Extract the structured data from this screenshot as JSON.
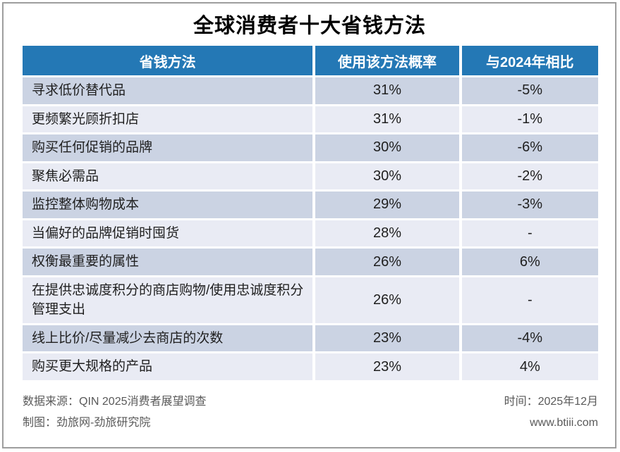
{
  "title": "全球消费者十大省钱方法",
  "table": {
    "columns": [
      "省钱方法",
      "使用该方法概率",
      "与2024年相比"
    ],
    "rows": [
      {
        "method": "寻求低价替代品",
        "probability": "31%",
        "vs2024": "-5%"
      },
      {
        "method": "更频繁光顾折扣店",
        "probability": "31%",
        "vs2024": "-1%"
      },
      {
        "method": "购买任何促销的品牌",
        "probability": "30%",
        "vs2024": "-6%"
      },
      {
        "method": "聚焦必需品",
        "probability": "30%",
        "vs2024": "-2%"
      },
      {
        "method": "监控整体购物成本",
        "probability": "29%",
        "vs2024": "-3%"
      },
      {
        "method": "当偏好的品牌促销时囤货",
        "probability": "28%",
        "vs2024": "-"
      },
      {
        "method": "权衡最重要的属性",
        "probability": "26%",
        "vs2024": "6%"
      },
      {
        "method": "在提供忠诚度积分的商店购物/使用忠诚度积分管理支出",
        "probability": "26%",
        "vs2024": "-"
      },
      {
        "method": "线上比价/尽量减少去商店的次数",
        "probability": "23%",
        "vs2024": "-4%"
      },
      {
        "method": "购买更大规格的产品",
        "probability": "23%",
        "vs2024": "4%"
      }
    ]
  },
  "footer": {
    "source": "数据来源：QIN 2025消费者展望调查",
    "credit": "制图：劲旅网-劲旅研究院",
    "time": "时间：2025年12月",
    "website": "www.btiii.com"
  },
  "colors": {
    "header_blue": "#2478b5",
    "row_dark": "#cbd3e3",
    "row_light": "#e9ebf4",
    "frame_grey": "#9e9e9e",
    "footer_grey": "#595959"
  },
  "chart_data": {
    "type": "table",
    "title": "全球消费者十大省钱方法",
    "columns": [
      "省钱方法",
      "使用该方法概率",
      "与2024年相比"
    ],
    "categories": [
      "寻求低价替代品",
      "更频繁光顾折扣店",
      "购买任何促销的品牌",
      "聚焦必需品",
      "监控整体购物成本",
      "当偏好的品牌促销时囤货",
      "权衡最重要的属性",
      "在提供忠诚度积分的商店购物/使用忠诚度积分管理支出",
      "线上比价/尽量减少去商店的次数",
      "购买更大规格的产品"
    ],
    "series": [
      {
        "name": "使用该方法概率(%)",
        "values": [
          31,
          31,
          30,
          30,
          29,
          28,
          26,
          26,
          23,
          23
        ]
      },
      {
        "name": "与2024年相比(百分点)",
        "values": [
          -5,
          -1,
          -6,
          -2,
          -3,
          null,
          6,
          null,
          -4,
          4
        ]
      }
    ]
  }
}
